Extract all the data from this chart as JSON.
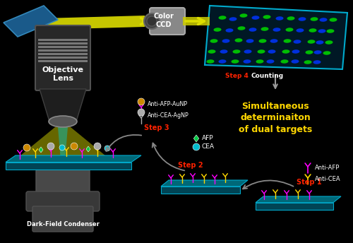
{
  "bg_color": "#000000",
  "simultaneous_text": [
    "Simultaneous",
    "determinaiton",
    "of dual targets"
  ],
  "step4_text": "Step 4",
  "counting_text": "Counting",
  "step3_text": "Step 3",
  "step2_text": "Step 2",
  "step1_text": "Step 1",
  "anti_afp_aunp": "Anti-AFP-AuNP",
  "anti_cea_agnp": "Anti-CEA-AgNP",
  "afp_label": "AFP",
  "cea_label": "CEA",
  "anti_afp_label": "Anti-AFP",
  "anti_cea_label": "Anti-CEA",
  "objective_lens": "Objective\nLens",
  "dark_field": "Dark-Field Condenser",
  "color_ccd": "Color\nCCD",
  "yellow": "#FFD700",
  "red": "#FF2200",
  "white": "#FFFFFF",
  "magenta": "#FF00FF",
  "gold": "#CC8800",
  "silver": "#AAAAAA",
  "teal1": "#006878",
  "teal2": "#004455",
  "panel_bg": "#001825",
  "panel_edge": "#00AACC"
}
